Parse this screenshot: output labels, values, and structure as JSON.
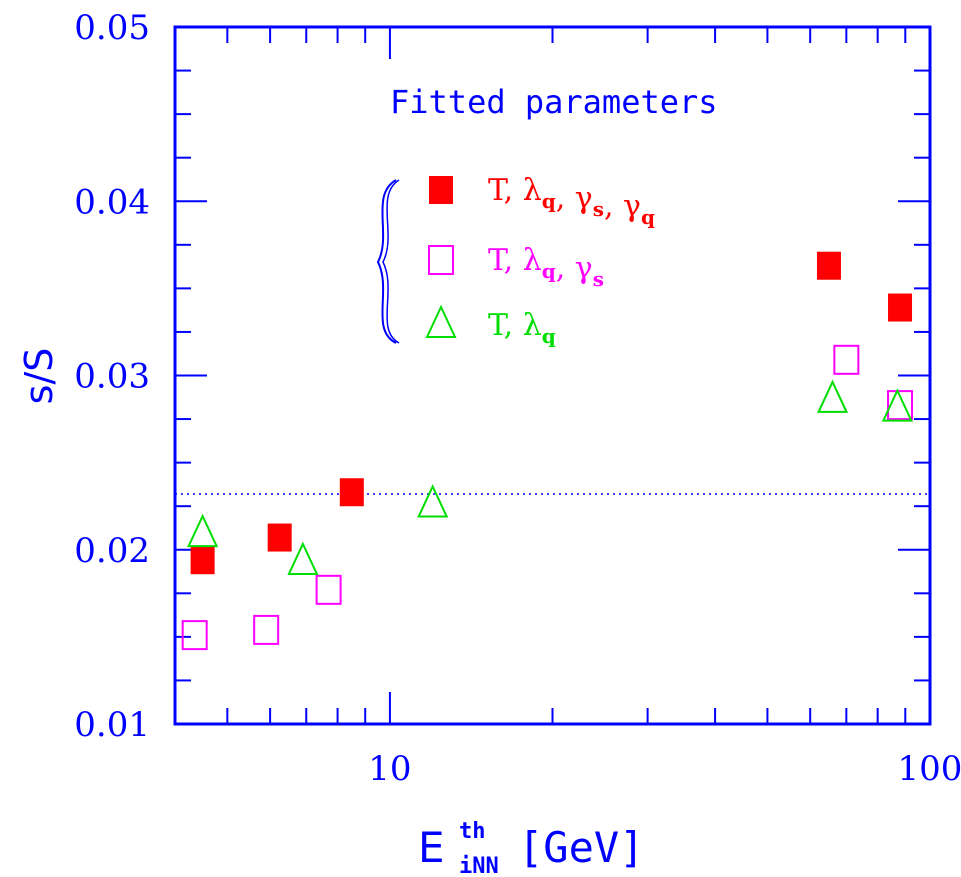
{
  "chart_data": {
    "type": "scatter",
    "xscale": "log",
    "xlim": [
      4.0,
      100
    ],
    "ylim": [
      0.01,
      0.05
    ],
    "xlabel": "E",
    "xlabel_sup": "th",
    "xlabel_sub": "iNN",
    "xlabel_unit": "[GeV]",
    "ylabel": "s/S",
    "x_tick_labels": [
      {
        "value": 10,
        "label": "10"
      },
      {
        "value": 100,
        "label": "100"
      }
    ],
    "y_tick_labels": [
      {
        "value": 0.01,
        "label": "0.01"
      },
      {
        "value": 0.02,
        "label": "0.02"
      },
      {
        "value": 0.03,
        "label": "0.03"
      },
      {
        "value": 0.04,
        "label": "0.04"
      },
      {
        "value": 0.05,
        "label": "0.05"
      }
    ],
    "reference_line": {
      "y": 0.0232,
      "style": "dotted",
      "color": "#0000ff"
    },
    "legend": {
      "title": "Fitted parameters",
      "bracket": true,
      "entries": [
        {
          "series": 0,
          "text": "T, λq, γs, γq"
        },
        {
          "series": 1,
          "text": "T, λq, γs"
        },
        {
          "series": 2,
          "text": "T, λq"
        }
      ]
    },
    "series": [
      {
        "name": "T, λq, γs, γq",
        "marker": "filled-square",
        "color": "#ff0000",
        "points": [
          {
            "x": 4.5,
            "y": 0.0194
          },
          {
            "x": 6.25,
            "y": 0.0207
          },
          {
            "x": 8.5,
            "y": 0.0233
          },
          {
            "x": 65,
            "y": 0.0363
          },
          {
            "x": 88,
            "y": 0.0339
          }
        ]
      },
      {
        "name": "T, λq, γs",
        "marker": "open-square",
        "color": "#ff00ff",
        "points": [
          {
            "x": 4.35,
            "y": 0.0151
          },
          {
            "x": 5.9,
            "y": 0.0154
          },
          {
            "x": 7.7,
            "y": 0.0177
          },
          {
            "x": 70,
            "y": 0.0309
          },
          {
            "x": 88,
            "y": 0.0283
          }
        ]
      },
      {
        "name": "T, λq",
        "marker": "open-triangle",
        "color": "#00dd00",
        "points": [
          {
            "x": 4.5,
            "y": 0.0209
          },
          {
            "x": 6.9,
            "y": 0.0193
          },
          {
            "x": 12,
            "y": 0.0226
          },
          {
            "x": 66,
            "y": 0.0286
          },
          {
            "x": 87,
            "y": 0.0281
          }
        ]
      }
    ]
  }
}
